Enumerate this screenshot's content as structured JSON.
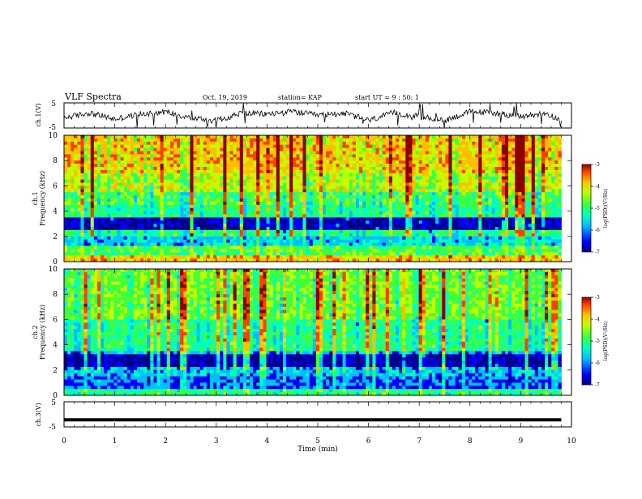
{
  "header": {
    "title": "VLF Spectra",
    "date": "Oct. 19, 2019",
    "station": "station= KAP",
    "start_ut": "start  UT =   9 : 50: 1"
  },
  "colors": {
    "trace": "#000000",
    "colormap": [
      "#00008b",
      "#0000ff",
      "#00bfff",
      "#00ffbf",
      "#3fff3f",
      "#bfff00",
      "#ffbf00",
      "#ff3f00",
      "#8b0000"
    ]
  },
  "chart_data": [
    {
      "type": "line",
      "id": "ch1-waveform",
      "ylabel": "ch.1(V)",
      "yticks": [
        "5",
        "-5"
      ],
      "ylim": [
        -5,
        5
      ],
      "xlim": [
        0,
        10
      ],
      "data_end_min": 9.8,
      "series": [
        {
          "x": [
            0,
            0.5,
            1,
            1.5,
            2,
            2.5,
            3,
            3.5,
            4,
            4.5,
            5,
            5.5,
            6,
            6.5,
            7,
            7.5,
            8,
            8.5,
            9,
            9.5,
            9.8
          ],
          "y": [
            -1,
            1,
            -1.5,
            0.5,
            1.5,
            -1,
            -2,
            1,
            0.5,
            1.5,
            0,
            1,
            -2,
            1,
            -0.5,
            -2,
            1.5,
            1,
            -0.5,
            1,
            -2
          ]
        }
      ]
    },
    {
      "type": "heatmap",
      "id": "ch1-spectrogram",
      "ylabel": "ch.1\nFrequency (kHz)",
      "ylim": [
        0,
        10
      ],
      "yticks": [
        "0",
        "2",
        "4",
        "6",
        "8",
        "10"
      ],
      "xlim": [
        0,
        10
      ],
      "data_end_min": 9.8,
      "colorbar": {
        "label": "log(PSD)(V²/Hz)",
        "range": [
          -7,
          -3
        ],
        "ticks": [
          "-3",
          "-4",
          "-5",
          "-6",
          "-7"
        ]
      }
    },
    {
      "type": "heatmap",
      "id": "ch2-spectrogram",
      "ylabel": "ch.2\nFrequency (kHz)",
      "ylim": [
        0,
        10
      ],
      "yticks": [
        "0",
        "2",
        "4",
        "6",
        "8",
        "10"
      ],
      "xlim": [
        0,
        10
      ],
      "data_end_min": 9.8,
      "colorbar": {
        "label": "log(PSD)(V²/Hz)",
        "range": [
          -7,
          -3
        ],
        "ticks": [
          "-3",
          "-4",
          "-5",
          "-6",
          "-7"
        ]
      }
    },
    {
      "type": "line",
      "id": "ch3-waveform",
      "ylabel": "ch.3(V)",
      "yticks": [
        "5",
        "-5"
      ],
      "ylim": [
        -5,
        5
      ],
      "xlim": [
        0,
        10
      ],
      "data_end_min": 9.8,
      "series": [
        {
          "x": [
            0,
            9.8
          ],
          "y": [
            -2.2,
            -2.2
          ]
        }
      ]
    }
  ],
  "xaxis": {
    "label": "Time  (min)",
    "ticks": [
      "0",
      "1",
      "2",
      "3",
      "4",
      "5",
      "6",
      "7",
      "8",
      "9",
      "10"
    ]
  }
}
